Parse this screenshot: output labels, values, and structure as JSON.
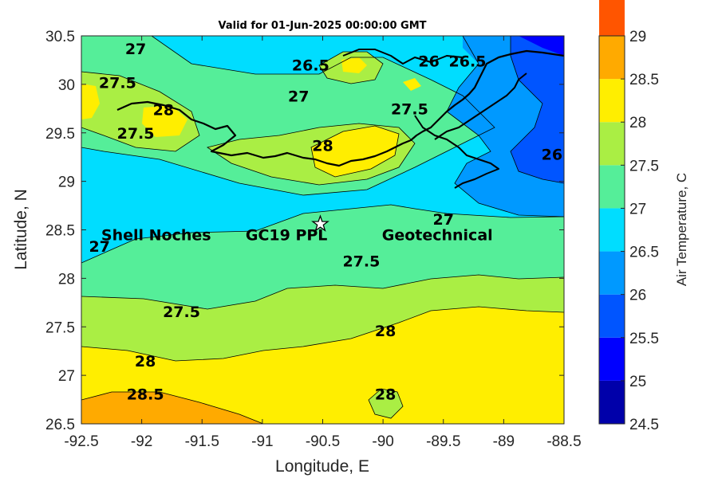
{
  "chart_data": {
    "type": "contour",
    "title": "Valid for 01-Jun-2025 00:00:00 GMT",
    "xlabel": "Longitude, E",
    "ylabel": "Latitude, N",
    "xlim": [
      -92.5,
      -88.5
    ],
    "ylim": [
      26.5,
      30.5
    ],
    "xticks": [
      "-92.5",
      "-92",
      "-91.5",
      "-91",
      "-90.5",
      "-90",
      "-89.5",
      "-89",
      "-88.5"
    ],
    "yticks": [
      "26.5",
      "27",
      "27.5",
      "28",
      "28.5",
      "29",
      "29.5",
      "30",
      "30.5"
    ],
    "colorbar": {
      "label": "Air Temperature, C",
      "ticks": [
        "24.5",
        "25",
        "25.5",
        "26",
        "26.5",
        "27",
        "27.5",
        "28",
        "28.5",
        "29"
      ],
      "range": [
        24.5,
        29
      ],
      "step": 0.5,
      "colors": [
        "#0000aa",
        "#0000ff",
        "#0055ff",
        "#0099ff",
        "#00ddff",
        "#55ee99",
        "#aaee44",
        "#ffee00",
        "#ffaa00",
        "#ff5500"
      ]
    },
    "contour_labels": [
      {
        "text": "27",
        "lon": -92.05,
        "lat": 30.37
      },
      {
        "text": "26.5",
        "lon": -90.6,
        "lat": 30.2
      },
      {
        "text": "26",
        "lon": -89.62,
        "lat": 30.24
      },
      {
        "text": "26.5",
        "lon": -89.3,
        "lat": 30.24
      },
      {
        "text": "27.5",
        "lon": -92.2,
        "lat": 30.02
      },
      {
        "text": "27",
        "lon": -90.7,
        "lat": 29.88
      },
      {
        "text": "28",
        "lon": -91.82,
        "lat": 29.74
      },
      {
        "text": "27.5",
        "lon": -92.05,
        "lat": 29.5
      },
      {
        "text": "27.5",
        "lon": -89.78,
        "lat": 29.75
      },
      {
        "text": "28",
        "lon": -90.5,
        "lat": 29.37
      },
      {
        "text": "26",
        "lon": -88.6,
        "lat": 29.28
      },
      {
        "text": "27",
        "lon": -89.5,
        "lat": 28.61
      },
      {
        "text": "27",
        "lon": -92.35,
        "lat": 28.33
      },
      {
        "text": "27.5",
        "lon": -90.18,
        "lat": 28.18
      },
      {
        "text": "27.5",
        "lon": -91.67,
        "lat": 27.66
      },
      {
        "text": "28",
        "lon": -89.98,
        "lat": 27.46
      },
      {
        "text": "28",
        "lon": -91.97,
        "lat": 27.15
      },
      {
        "text": "28.5",
        "lon": -91.97,
        "lat": 26.81
      },
      {
        "text": "28",
        "lon": -89.98,
        "lat": 26.81
      }
    ],
    "annotations": [
      {
        "text": "Shell Noches",
        "lon": -91.88,
        "lat": 28.45
      },
      {
        "text": "GC19 PPL",
        "lon": -90.8,
        "lat": 28.45
      },
      {
        "text": "Geotechnical",
        "lon": -89.55,
        "lat": 28.45
      }
    ],
    "station_marker": {
      "lon": -90.52,
      "lat": 28.56,
      "symbol": "star"
    }
  }
}
